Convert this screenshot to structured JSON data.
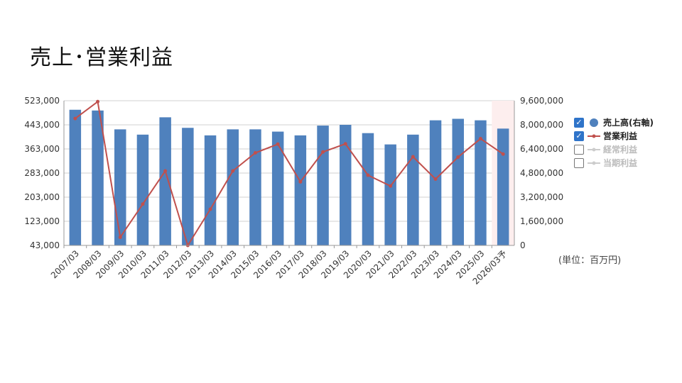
{
  "title": "売上･営業利益",
  "unit_note": "(単位：百万円)",
  "legend": [
    {
      "label": "売上高(右軸)",
      "checked": true,
      "symbol": "circle",
      "color": "#4f81bd"
    },
    {
      "label": "営業利益",
      "checked": true,
      "symbol": "line-marker",
      "color": "#c0504d"
    },
    {
      "label": "経常利益",
      "checked": false,
      "symbol": "line-marker",
      "color": "#cccccc"
    },
    {
      "label": "当期利益",
      "checked": false,
      "symbol": "line-marker",
      "color": "#cccccc"
    }
  ],
  "chart_data": {
    "type": "bar",
    "categories": [
      "2007/03",
      "2008/03",
      "2009/03",
      "2010/03",
      "2011/03",
      "2012/03",
      "2013/03",
      "2014/03",
      "2015/03",
      "2016/03",
      "2017/03",
      "2018/03",
      "2019/03",
      "2020/03",
      "2021/03",
      "2022/03",
      "2023/03",
      "2024/03",
      "2025/03",
      "2026/03予"
    ],
    "series": [
      {
        "name": "売上高(右軸)",
        "type": "bar",
        "axis": "right",
        "color": "#4f81bd",
        "values": [
          9000000,
          8950000,
          7700000,
          7350000,
          8500000,
          7800000,
          7300000,
          7700000,
          7700000,
          7550000,
          7300000,
          7950000,
          8000000,
          7450000,
          6700000,
          7350000,
          8300000,
          8400000,
          8300000,
          7750000
        ]
      },
      {
        "name": "営業利益",
        "type": "line",
        "axis": "left",
        "color": "#c0504d",
        "values": [
          464000,
          520000,
          70000,
          180000,
          290000,
          43000,
          163000,
          290000,
          350000,
          379000,
          254000,
          353000,
          380000,
          276000,
          240000,
          337000,
          263000,
          336000,
          397000,
          346000
        ]
      }
    ],
    "y_left": {
      "min": 43000,
      "max": 523000,
      "ticks": [
        "523,000",
        "443,000",
        "363,000",
        "283,000",
        "203,000",
        "123,000",
        "43,000"
      ]
    },
    "y_right": {
      "min": 0,
      "max": 9600000,
      "ticks": [
        "9,600,000",
        "8,000,000",
        "6,400,000",
        "4,800,000",
        "3,200,000",
        "1,600,000",
        "0"
      ]
    },
    "forecast_highlight": "2026/03予",
    "grid": true,
    "legend_position": "right"
  }
}
